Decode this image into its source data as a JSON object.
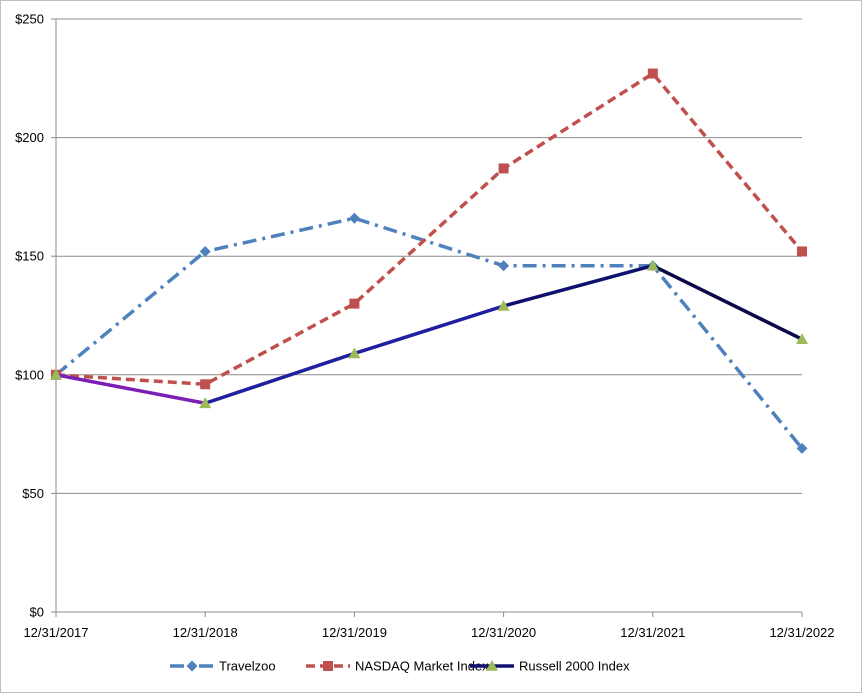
{
  "chart_data": {
    "type": "line",
    "title": "",
    "xlabel": "",
    "ylabel": "",
    "categories": [
      "12/31/2017",
      "12/31/2018",
      "12/31/2019",
      "12/31/2020",
      "12/31/2021",
      "12/31/2022"
    ],
    "ylim": [
      0,
      250
    ],
    "yticks": [
      0,
      50,
      100,
      150,
      200,
      250
    ],
    "ytick_labels": [
      "$0",
      "$50",
      "$100",
      "$150",
      "$200",
      "$250"
    ],
    "grid": "horizontal",
    "legend_position": "bottom",
    "series": [
      {
        "name": "Travelzoo",
        "values": [
          100,
          152,
          166,
          146,
          146,
          69
        ],
        "color": "#4f81bd",
        "marker": "diamond",
        "dash": "dash-dot"
      },
      {
        "name": "NASDAQ Market Index",
        "values": [
          100,
          96,
          130,
          187,
          227,
          152
        ],
        "color": "#c0504d",
        "marker": "square",
        "dash": "dash"
      },
      {
        "name": "Russell 2000 Index",
        "values": [
          100,
          88,
          109,
          129,
          146,
          115
        ],
        "color": "#1f1f9f",
        "segment_colors": [
          "#7b1fb5",
          "#1f1f9f",
          "#1f1f9f",
          "#10106e",
          "#0a0a4a"
        ],
        "marker_color": "#9bbb59",
        "marker": "triangle",
        "dash": "solid"
      }
    ]
  }
}
